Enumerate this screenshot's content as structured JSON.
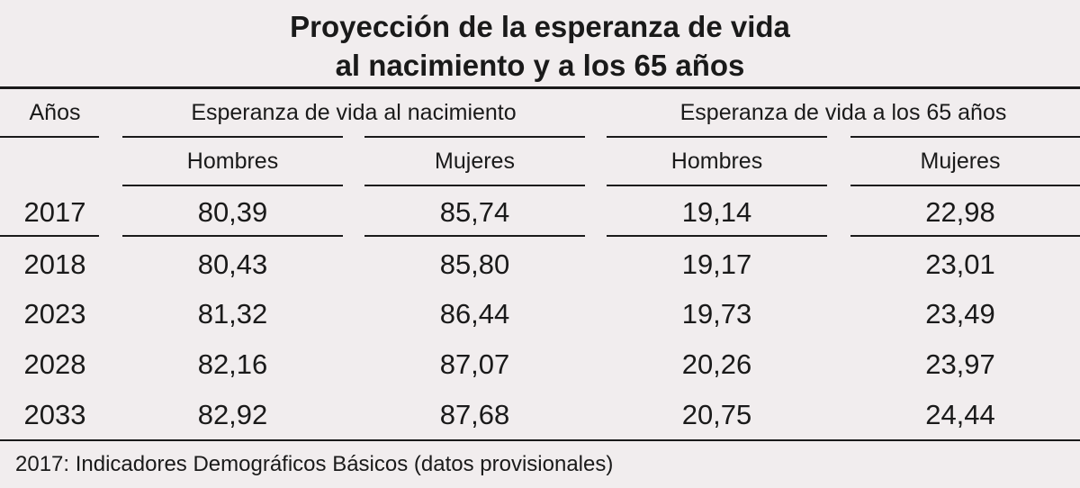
{
  "chart_data": {
    "type": "table",
    "title_lines": [
      "Proyección de la esperanza de vida",
      "al nacimiento y a los 65 años"
    ],
    "header": {
      "year_label": "Años",
      "group_birth": "Esperanza de vida al nacimiento",
      "group_65": "Esperanza de vida a los 65 años",
      "men": "Hombres",
      "women": "Mujeres"
    },
    "columns": [
      "Años",
      "Nacimiento Hombres",
      "Nacimiento Mujeres",
      "65 años Hombres",
      "65 años Mujeres"
    ],
    "rows": [
      {
        "year": "2017",
        "birth_men": "80,39",
        "birth_women": "85,74",
        "at65_men": "19,14",
        "at65_women": "22,98"
      },
      {
        "year": "2018",
        "birth_men": "80,43",
        "birth_women": "85,80",
        "at65_men": "19,17",
        "at65_women": "23,01"
      },
      {
        "year": "2023",
        "birth_men": "81,32",
        "birth_women": "86,44",
        "at65_men": "19,73",
        "at65_women": "23,49"
      },
      {
        "year": "2028",
        "birth_men": "82,16",
        "birth_women": "87,07",
        "at65_men": "20,26",
        "at65_women": "23,97"
      },
      {
        "year": "2033",
        "birth_men": "82,92",
        "birth_women": "87,68",
        "at65_men": "20,75",
        "at65_women": "24,44"
      }
    ],
    "footnote": "2017: Indicadores Demográficos Básicos (datos provisionales)"
  }
}
